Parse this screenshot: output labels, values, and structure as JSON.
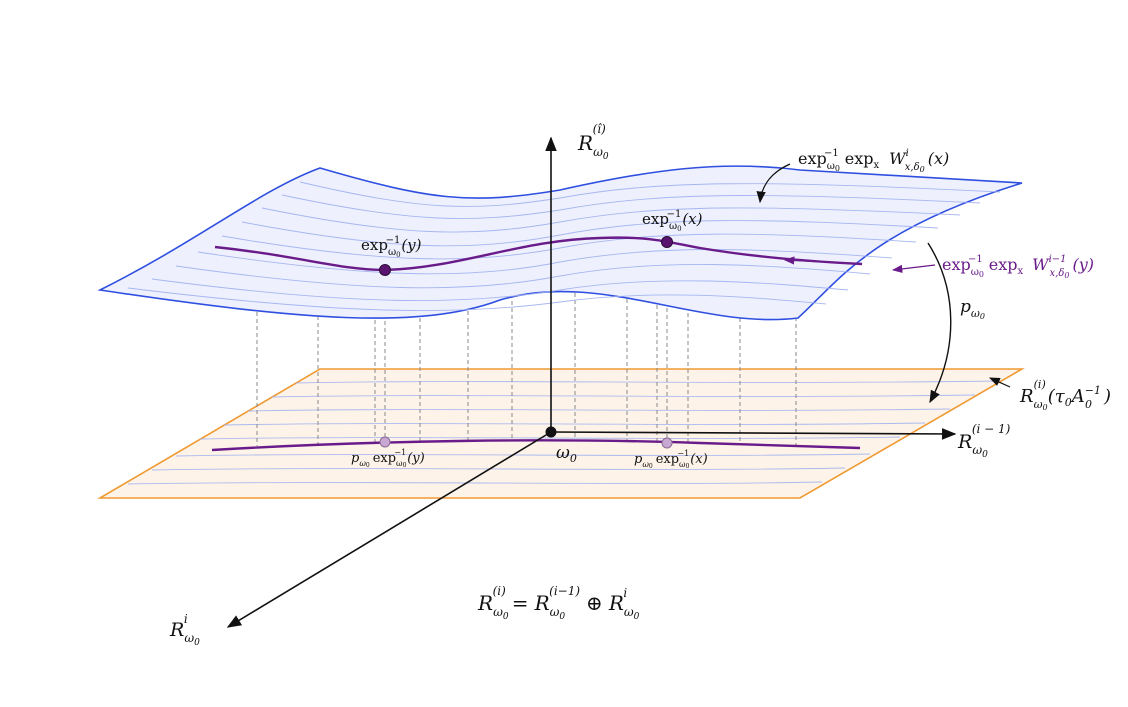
{
  "colors": {
    "upper_surface_fill": "#eef0fd",
    "upper_surface_edge": "#2f4fe0",
    "lower_plane_fill": "#fdf3e9",
    "lower_plane_edge": "#ef9a32",
    "leaf_lines": "#9fb0ef",
    "curve": "#6a1b8a",
    "projected_point": "#c8a8d2",
    "axes": "#111111",
    "dashes": "#8a8a8a"
  },
  "labels": {
    "axis_up": {
      "base": "R",
      "sub": "ω",
      "subsub": "0",
      "sup": "(î)"
    },
    "axis_right": {
      "base": "R",
      "sub": "ω",
      "subsub": "0",
      "sup": "(i − 1)"
    },
    "axis_down": {
      "base": "R",
      "sub": "ω",
      "subsub": "0",
      "sup": "i"
    },
    "origin": {
      "base": "ω",
      "sub": "0"
    },
    "surface_label": {
      "pre": "exp",
      "presub": "ω",
      "presubsub": "0",
      "presup": "−1",
      "mid": "exp",
      "midsub": "x",
      "W": "W",
      "Wsup": "i",
      "Wsub": "x,δ",
      "Wsubsub": "0",
      "arg": "(x)"
    },
    "curve_label": {
      "pre": "exp",
      "presub": "ω",
      "presubsub": "0",
      "presup": "−1",
      "mid": "exp",
      "midsub": "x",
      "W": "W",
      "Wsup": "i−1",
      "Wsub": "x,δ",
      "Wsubsub": "0",
      "arg": "(y)"
    },
    "projection_label": {
      "base": "p",
      "sub": "ω",
      "subsub": "0"
    },
    "plane_label": {
      "base": "R",
      "sub": "ω",
      "subsub": "0",
      "sup": "(i)",
      "arg": "(τ",
      "argsub": "0",
      "A": "A",
      "Asub": "0",
      "Asup": "−1",
      "close": ")"
    },
    "point_y_upper": {
      "pre": "exp",
      "sub": "ω",
      "subsub": "0",
      "sup": "−1",
      "arg": "(y)"
    },
    "point_x_upper": {
      "pre": "exp",
      "sub": "ω",
      "subsub": "0",
      "sup": "−1",
      "arg": "(x)"
    },
    "point_y_lower": {
      "p": "p",
      "psub": "ω",
      "psubsub": "0",
      "pre": "exp",
      "sub": "ω",
      "subsub": "0",
      "sup": "−1",
      "arg": "(y)"
    },
    "point_x_lower": {
      "p": "p",
      "psub": "ω",
      "psubsub": "0",
      "pre": "exp",
      "sub": "ω",
      "subsub": "0",
      "sup": "−1",
      "arg": "(x)"
    },
    "equation": {
      "lhs": "R",
      "lhssub": "ω",
      "lhssubsub": "0",
      "lhssup": "(i)",
      "eq": "=",
      "r1": "R",
      "r1sub": "ω",
      "r1subsub": "0",
      "r1sup": "(i−1)",
      "op": "⊕",
      "r2": "R",
      "r2sub": "ω",
      "r2subsub": "0",
      "r2sup": "i"
    }
  }
}
